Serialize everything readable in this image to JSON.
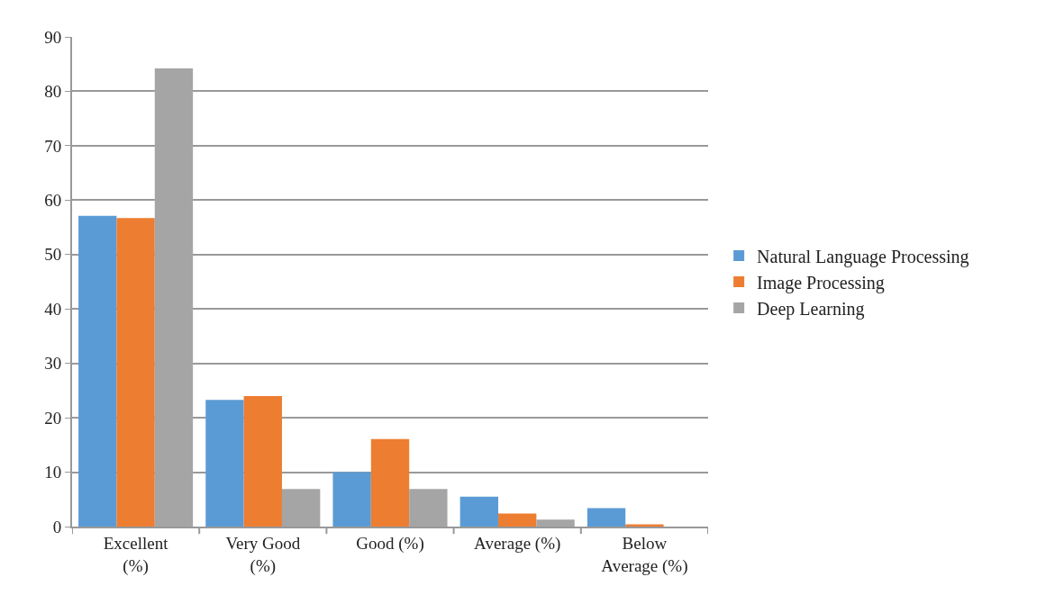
{
  "chart_data": {
    "type": "bar",
    "categories": [
      "Excellent\n(%)",
      "Very Good\n(%)",
      "Good (%)",
      "Average (%)",
      "Below\nAverage (%)"
    ],
    "series": [
      {
        "name": "Natural Language Processing",
        "color": "#5b9bd5",
        "values": [
          57.1,
          23.3,
          10.0,
          5.5,
          3.4
        ]
      },
      {
        "name": "Image Processing",
        "color": "#ed7d31",
        "values": [
          56.7,
          24.0,
          16.1,
          2.4,
          0.4
        ]
      },
      {
        "name": "Deep Learning",
        "color": "#a5a5a5",
        "values": [
          84.2,
          6.9,
          6.9,
          1.3,
          0
        ]
      }
    ],
    "ylim": [
      0,
      90
    ],
    "yticks": [
      0,
      10,
      20,
      30,
      40,
      50,
      60,
      70,
      80,
      90
    ],
    "grid": "y",
    "legend": "right"
  }
}
